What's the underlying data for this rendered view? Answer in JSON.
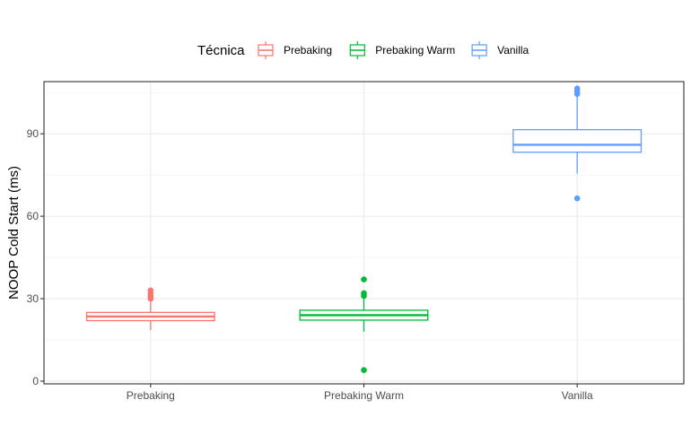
{
  "chart_data": {
    "type": "box",
    "title": "",
    "xlabel": "",
    "ylabel": "NOOP Cold Start (ms)",
    "ylim": [
      -1,
      109
    ],
    "yticks": [
      0,
      30,
      60,
      90
    ],
    "grid": true,
    "legend": {
      "title": "Técnica",
      "placement": "top",
      "entries": [
        "Prebaking",
        "Prebaking Warm",
        "Vanilla"
      ]
    },
    "categories": [
      "Prebaking",
      "Prebaking Warm",
      "Vanilla"
    ],
    "series": [
      {
        "name": "Prebaking",
        "color": "#F8766D",
        "whisker_low": 18.5,
        "q1": 22,
        "median": 23.5,
        "q3": 25,
        "whisker_high": 29,
        "outliers": [
          30,
          31,
          32,
          33
        ]
      },
      {
        "name": "Prebaking Warm",
        "color": "#00BA38",
        "whisker_low": 18,
        "q1": 22.2,
        "median": 24,
        "q3": 25.8,
        "whisker_high": 30,
        "outliers": [
          4,
          31,
          32,
          37
        ]
      },
      {
        "name": "Vanilla",
        "color": "#619CFF",
        "whisker_low": 75.5,
        "q1": 83.3,
        "median": 86,
        "q3": 91.5,
        "whisker_high": 103.5,
        "outliers": [
          66.5,
          104.5,
          105.5,
          106.5
        ]
      }
    ]
  }
}
